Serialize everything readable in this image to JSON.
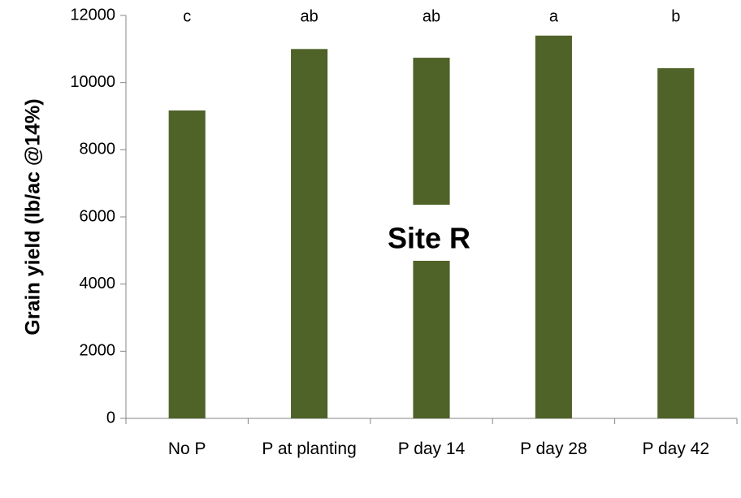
{
  "chart_data": {
    "type": "bar",
    "y_label": "Grain yield (lb/ac @14%)",
    "annotation": "Site R",
    "categories": [
      "No P",
      "P at planting",
      "P day 14",
      "P day 28",
      "P day 42"
    ],
    "values": [
      9170,
      11000,
      10740,
      11400,
      10430
    ],
    "significance_letters": [
      "c",
      "ab",
      "ab",
      "a",
      "b"
    ],
    "color": "#4f6228",
    "ylim": [
      0,
      12000
    ],
    "yticks": [
      0,
      2000,
      4000,
      6000,
      8000,
      10000,
      12000
    ],
    "grid": false
  }
}
